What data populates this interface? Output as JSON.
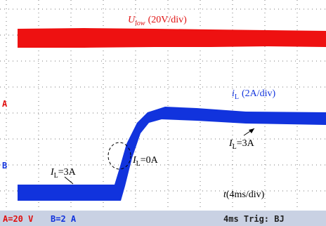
{
  "traces": {
    "u_low": {
      "symbol": "U",
      "subscript": "low",
      "scale": "(20V/div)"
    },
    "i_l": {
      "symbol": "i",
      "subscript": "L",
      "scale": "(2A/div)"
    }
  },
  "annotations": [
    {
      "symbol": "I",
      "subscript": "L",
      "text": "=3A"
    },
    {
      "symbol": "I",
      "subscript": "L",
      "text": "=0A"
    },
    {
      "symbol": "I",
      "subscript": "L",
      "text": "=3A"
    }
  ],
  "time_scale": {
    "symbol": "t",
    "text": "(4ms/div)"
  },
  "channel_markers": [
    "A",
    "B"
  ],
  "status_bar": {
    "channel_a": "A=20 V",
    "channel_b": "B=2 A",
    "timebase": "4ms Trig: BJ"
  }
}
